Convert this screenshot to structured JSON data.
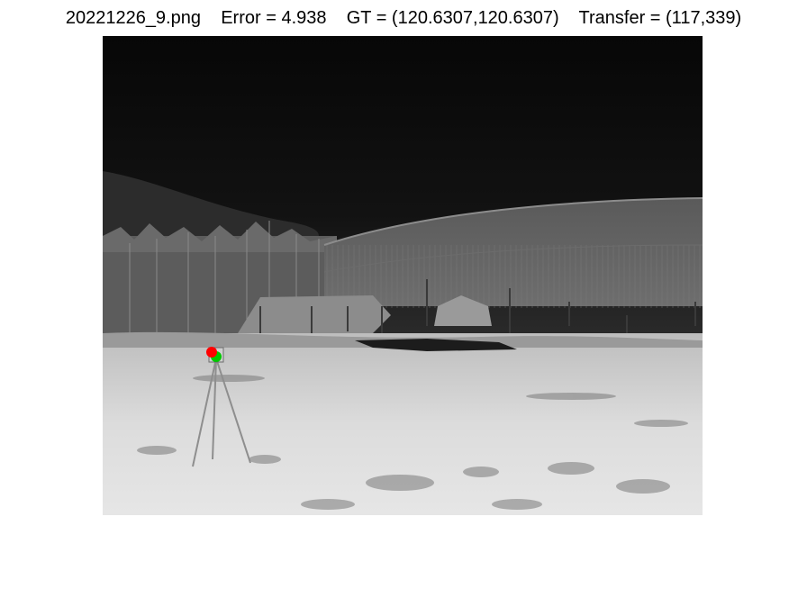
{
  "figure": {
    "title": "20221226_9.png    Error = 4.938    GT = (120.6307,120.6307)    Transfer = (117,339)"
  },
  "markers": [
    {
      "name": "transfer-marker",
      "color": "#ff0000"
    },
    {
      "name": "ground-truth-marker",
      "color": "#00c800"
    }
  ]
}
